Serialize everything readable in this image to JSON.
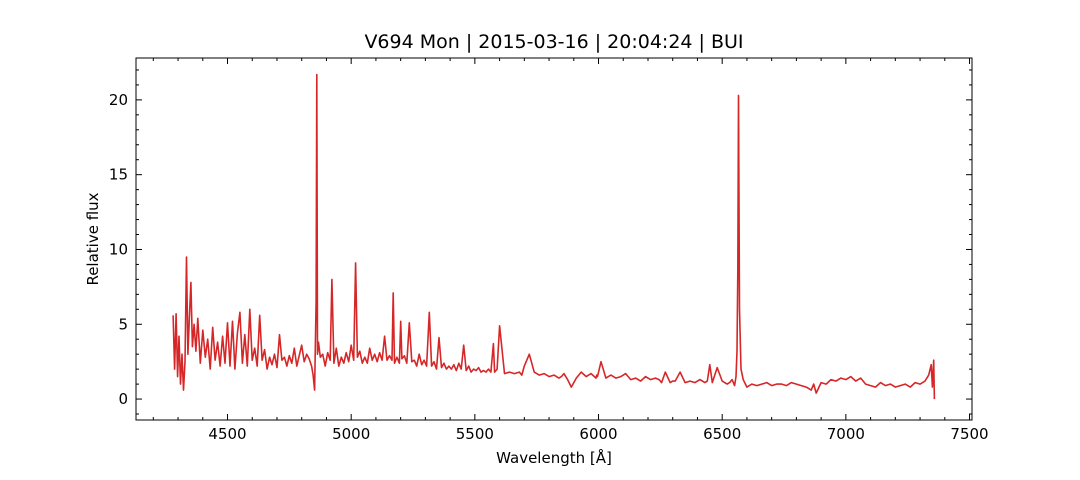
{
  "chart_data": {
    "type": "line",
    "title": "V694 Mon | 2015-03-16 | 20:04:24 | BUI",
    "xlabel": "Wavelength [Å]",
    "ylabel": "Relative flux",
    "xlim": [
      4130,
      7510
    ],
    "ylim": [
      -1.4,
      22.8
    ],
    "xticks": [
      4500,
      5000,
      5500,
      6000,
      6500,
      7000,
      7500
    ],
    "yticks": [
      0,
      5,
      10,
      15,
      20
    ],
    "grid": false,
    "line_color": "#d62728",
    "series": [
      {
        "x": [
          4280,
          4286,
          4292,
          4298,
          4304,
          4310,
          4316,
          4322,
          4328,
          4334,
          4340,
          4346,
          4352,
          4358,
          4365,
          4372,
          4380,
          4390,
          4400,
          4410,
          4420,
          4430,
          4440,
          4450,
          4460,
          4470,
          4480,
          4490,
          4500,
          4510,
          4520,
          4530,
          4540,
          4550,
          4560,
          4570,
          4580,
          4590,
          4600,
          4610,
          4620,
          4630,
          4640,
          4650,
          4660,
          4670,
          4680,
          4690,
          4700,
          4710,
          4720,
          4730,
          4740,
          4750,
          4760,
          4770,
          4780,
          4790,
          4800,
          4810,
          4820,
          4830,
          4840,
          4846,
          4852,
          4858,
          4861,
          4864,
          4868,
          4875,
          4885,
          4895,
          4905,
          4915,
          4922,
          4930,
          4940,
          4950,
          4960,
          4970,
          4980,
          4990,
          5000,
          5010,
          5018,
          5025,
          5035,
          5045,
          5055,
          5065,
          5075,
          5085,
          5095,
          5105,
          5115,
          5125,
          5135,
          5145,
          5155,
          5165,
          5170,
          5175,
          5185,
          5195,
          5200,
          5205,
          5215,
          5225,
          5235,
          5245,
          5255,
          5265,
          5275,
          5285,
          5295,
          5305,
          5316,
          5325,
          5335,
          5345,
          5355,
          5365,
          5375,
          5385,
          5395,
          5405,
          5415,
          5425,
          5435,
          5445,
          5455,
          5465,
          5475,
          5485,
          5495,
          5505,
          5515,
          5525,
          5535,
          5545,
          5555,
          5565,
          5575,
          5580,
          5590,
          5600,
          5620,
          5640,
          5660,
          5680,
          5690,
          5700,
          5720,
          5740,
          5760,
          5780,
          5800,
          5820,
          5840,
          5850,
          5860,
          5875,
          5890,
          5910,
          5930,
          5950,
          5970,
          5990,
          5993,
          5996,
          6010,
          6030,
          6050,
          6070,
          6090,
          6110,
          6130,
          6150,
          6170,
          6190,
          6210,
          6230,
          6245,
          6250,
          6255,
          6270,
          6290,
          6300,
          6310,
          6330,
          6350,
          6370,
          6390,
          6410,
          6430,
          6440,
          6450,
          6460,
          6480,
          6500,
          6520,
          6530,
          6540,
          6550,
          6556,
          6560,
          6563,
          6566,
          6570,
          6576,
          6585,
          6600,
          6620,
          6640,
          6660,
          6680,
          6700,
          6720,
          6740,
          6760,
          6780,
          6800,
          6820,
          6840,
          6860,
          6870,
          6880,
          6900,
          6920,
          6940,
          6960,
          6980,
          7000,
          7020,
          7040,
          7060,
          7080,
          7100,
          7120,
          7140,
          7160,
          7180,
          7200,
          7220,
          7240,
          7260,
          7280,
          7300,
          7320,
          7335,
          7345,
          7350,
          7355,
          7358
        ],
        "y": [
          5.6,
          2.0,
          5.7,
          1.5,
          4.2,
          1.0,
          3.0,
          0.6,
          2.5,
          9.5,
          3.0,
          5.5,
          7.8,
          3.5,
          5.0,
          3.2,
          5.4,
          2.4,
          4.6,
          2.8,
          4.0,
          2.0,
          4.8,
          2.6,
          3.8,
          2.2,
          4.2,
          2.4,
          5.1,
          2.2,
          5.2,
          2.0,
          4.4,
          5.8,
          2.4,
          4.3,
          2.2,
          6.0,
          2.6,
          3.4,
          2.2,
          5.6,
          2.6,
          3.3,
          2.0,
          2.8,
          2.3,
          3.0,
          2.1,
          4.3,
          2.6,
          2.8,
          2.2,
          2.9,
          2.4,
          3.4,
          2.2,
          2.9,
          3.6,
          2.5,
          3.0,
          2.7,
          2.2,
          1.6,
          0.6,
          6.5,
          21.7,
          3.0,
          3.8,
          2.8,
          3.0,
          2.2,
          3.1,
          2.6,
          8.0,
          2.4,
          3.4,
          2.2,
          2.8,
          2.4,
          3.1,
          2.5,
          3.6,
          2.6,
          9.1,
          2.8,
          3.2,
          2.4,
          2.8,
          2.4,
          3.4,
          2.6,
          3.0,
          2.5,
          3.1,
          2.6,
          4.2,
          2.6,
          2.9,
          2.6,
          7.1,
          2.4,
          2.8,
          2.4,
          5.2,
          2.7,
          2.9,
          2.4,
          5.1,
          2.5,
          2.6,
          2.2,
          3.0,
          2.3,
          2.6,
          2.2,
          5.8,
          2.2,
          2.5,
          2.0,
          4.1,
          2.1,
          2.4,
          2.0,
          2.2,
          2.0,
          2.3,
          1.9,
          2.4,
          2.0,
          3.6,
          1.9,
          2.2,
          1.8,
          2.0,
          1.9,
          2.1,
          1.8,
          1.9,
          1.8,
          2.0,
          1.8,
          3.7,
          1.8,
          2.0,
          4.9,
          1.7,
          1.8,
          1.7,
          1.8,
          1.6,
          2.2,
          3.0,
          1.8,
          1.6,
          1.7,
          1.5,
          1.6,
          1.4,
          1.5,
          1.7,
          1.3,
          0.8,
          1.4,
          1.8,
          1.5,
          1.7,
          1.4,
          1.6,
          1.5,
          2.5,
          1.4,
          1.6,
          1.4,
          1.5,
          1.7,
          1.3,
          1.4,
          1.2,
          1.5,
          1.3,
          1.4,
          1.3,
          1.2,
          1.1,
          1.8,
          1.1,
          1.2,
          1.2,
          1.8,
          1.1,
          1.2,
          1.1,
          1.3,
          1.1,
          1.2,
          2.3,
          1.1,
          2.1,
          1.2,
          1.0,
          1.1,
          1.3,
          0.9,
          1.5,
          3.2,
          8.5,
          20.3,
          6.0,
          2.0,
          1.3,
          0.8,
          1.0,
          0.9,
          1.0,
          1.1,
          0.9,
          1.0,
          1.0,
          0.9,
          1.1,
          1.0,
          0.9,
          0.8,
          0.6,
          1.0,
          0.4,
          1.1,
          1.0,
          1.3,
          1.2,
          1.4,
          1.3,
          1.5,
          1.2,
          1.4,
          1.0,
          0.9,
          0.8,
          1.1,
          0.9,
          1.0,
          0.8,
          0.9,
          1.0,
          0.8,
          1.1,
          1.0,
          1.2,
          1.6,
          2.3,
          0.8,
          2.6,
          0.0
        ]
      }
    ]
  }
}
